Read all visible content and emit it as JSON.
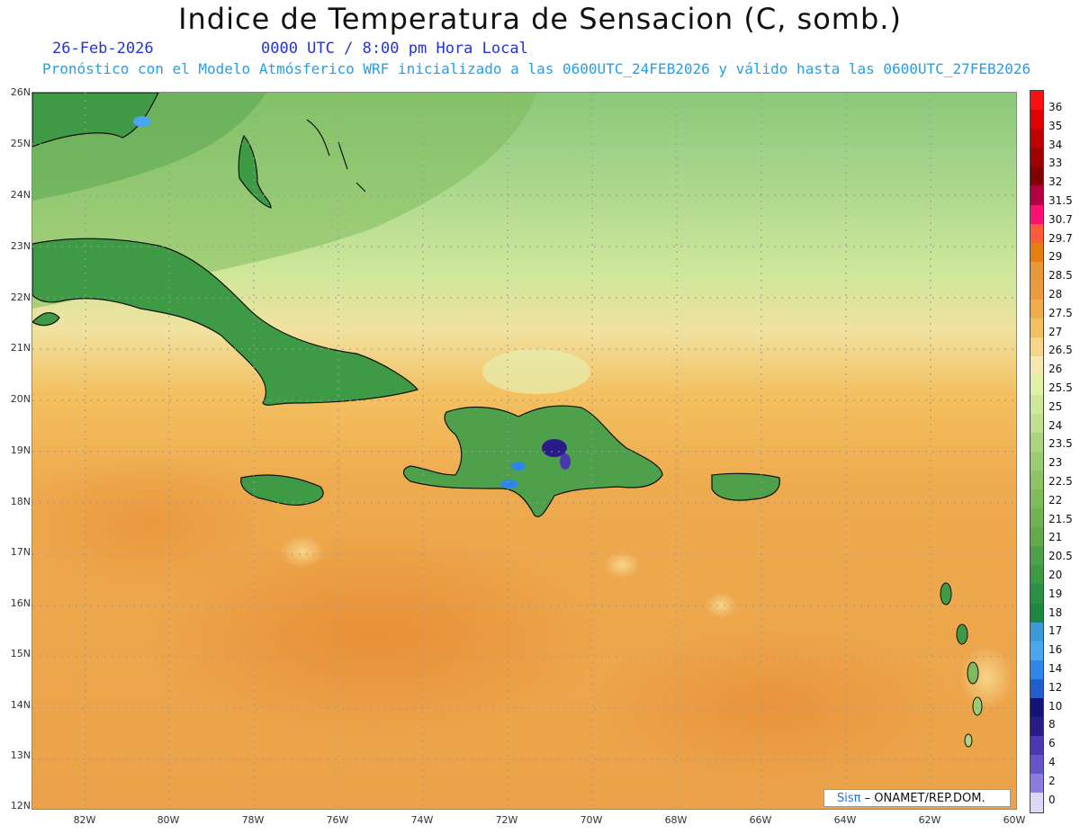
{
  "header": {
    "title": "Indice de Temperatura de Sensacion (C, somb.)",
    "date": "26-Feb-2026",
    "time": "0000 UTC / 8:00 pm Hora Local",
    "description": "Pronóstico con el Modelo Atmósferico WRF inicializado a las 0600UTC_24FEB2026 y válido hasta las  0600UTC_27FEB2026"
  },
  "axes": {
    "lat_labels": [
      "26N",
      "25N",
      "24N",
      "23N",
      "22N",
      "21N",
      "20N",
      "19N",
      "18N",
      "17N",
      "16N",
      "15N",
      "14N",
      "13N",
      "12N"
    ],
    "lon_labels": [
      "82W",
      "80W",
      "78W",
      "76W",
      "74W",
      "72W",
      "70W",
      "68W",
      "66W",
      "64W",
      "62W",
      "60W"
    ]
  },
  "colorbar": {
    "levels": [
      "36",
      "35",
      "34",
      "33",
      "32",
      "31.5",
      "30.7",
      "29.7",
      "29",
      "28.5",
      "28",
      "27.5",
      "27",
      "26.5",
      "26",
      "25.5",
      "25",
      "24",
      "23.5",
      "23",
      "22.5",
      "22",
      "21.5",
      "21",
      "20.5",
      "20",
      "19",
      "18",
      "17",
      "16",
      "14",
      "12",
      "10",
      "8",
      "6",
      "4",
      "2",
      "0"
    ],
    "colors": [
      "#ff1010",
      "#e00000",
      "#c00000",
      "#a00000",
      "#800000",
      "#b00040",
      "#ff1070",
      "#ff5a3a",
      "#e57d10",
      "#e99838",
      "#ec9a42",
      "#f0ad4a",
      "#f3c060",
      "#f6d58a",
      "#f5e8b0",
      "#e2f0a8",
      "#cfe79a",
      "#bfe090",
      "#abd57f",
      "#9ccc73",
      "#8ec467",
      "#7fbb5c",
      "#70b252",
      "#62aa4a",
      "#4ea04a",
      "#3f9a45",
      "#2b9043",
      "#1c883f",
      "#3a9bd8",
      "#4aa6ef",
      "#2f86e8",
      "#1f5ecf",
      "#12147a",
      "#2a1c88",
      "#4a38b0",
      "#6456c8",
      "#8a7ce0",
      "#dcd8f5"
    ]
  },
  "credit": {
    "brand": "Sisπ",
    "text": " – ONAMET/REP.DOM."
  }
}
